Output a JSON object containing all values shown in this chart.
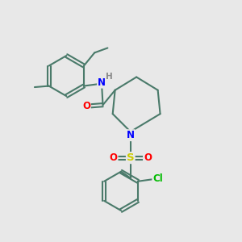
{
  "bg_color": "#e8e8e8",
  "bond_color": "#4a7a6a",
  "bond_width": 1.5,
  "atom_colors": {
    "N": "#0000ff",
    "O": "#ff0000",
    "S": "#cccc00",
    "Cl": "#00bb00",
    "H": "#888888",
    "C": "#4a7a6a"
  },
  "fs": 8.5
}
